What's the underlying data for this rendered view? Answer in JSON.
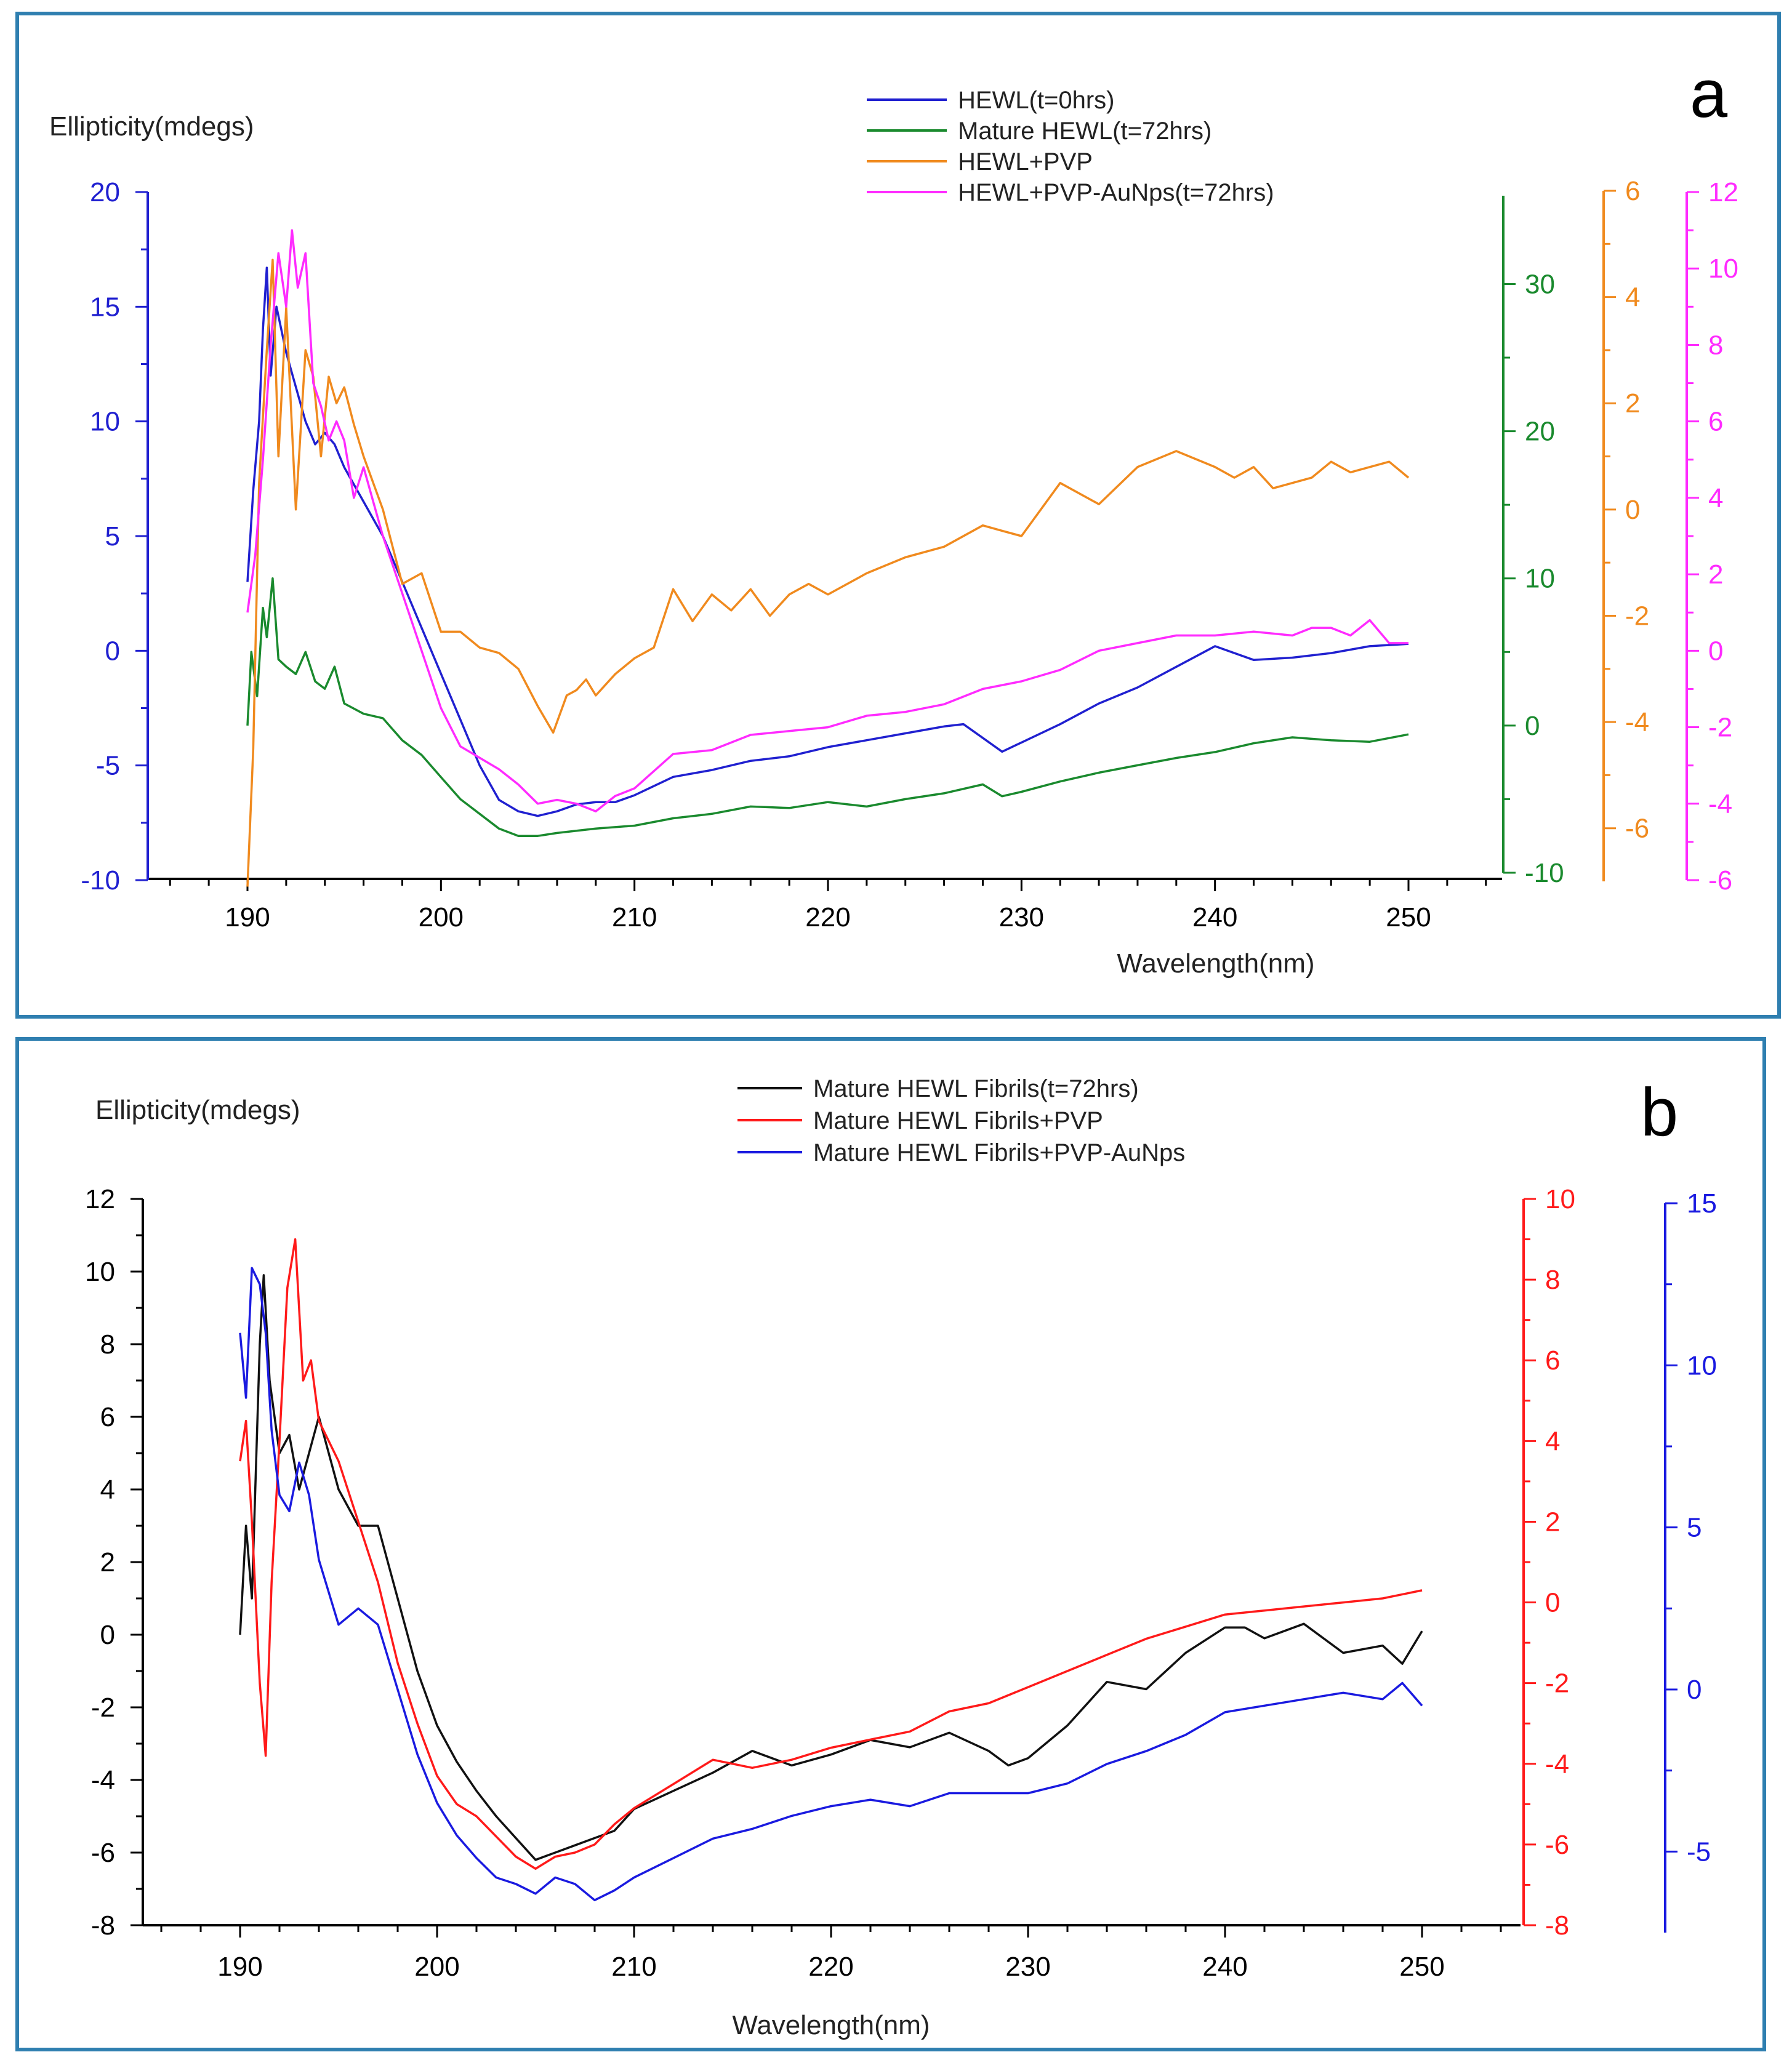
{
  "colors": {
    "frame": "#2f7fb0",
    "axis_black": "#000000",
    "a_blue": "#2020d0",
    "a_green": "#1a8a2e",
    "a_orange": "#f08a1e",
    "a_magenta": "#ff2bff",
    "b_black": "#111111",
    "b_red": "#ff1a1a",
    "b_blue": "#1a1ae0"
  },
  "chart_data": [
    {
      "panel": "a",
      "type": "line",
      "panel_label": "a",
      "ylabel": "Ellipticity(mdegs)",
      "xlabel": "Wavelength(nm)",
      "xlim": [
        185,
        255
      ],
      "x_ticks": [
        190,
        200,
        210,
        220,
        230,
        240,
        250
      ],
      "x_tick_labels": [
        "190",
        "200",
        "210",
        "220",
        "230",
        "240",
        "250"
      ],
      "axes": [
        {
          "id": "left",
          "color": "#2020d0",
          "ylim": [
            -10,
            20
          ],
          "ticks": [
            -10,
            -5,
            0,
            5,
            10,
            15,
            20
          ],
          "tick_labels": [
            "-10",
            "-5",
            "0",
            "5",
            "10",
            "15",
            "20"
          ]
        },
        {
          "id": "green",
          "color": "#1a8a2e",
          "ylim": [
            -10,
            36
          ],
          "ticks": [
            -10,
            0,
            10,
            20,
            30
          ],
          "tick_labels": [
            "-10",
            "0",
            "10",
            "20",
            "30"
          ]
        },
        {
          "id": "orange",
          "color": "#f08a1e",
          "ylim": [
            -7,
            6
          ],
          "ticks": [
            -6,
            -4,
            -2,
            0,
            2,
            4,
            6
          ],
          "tick_labels": [
            "-6",
            "-4",
            "-2",
            "0",
            "2",
            "4",
            "6"
          ]
        },
        {
          "id": "magenta",
          "color": "#ff2bff",
          "ylim": [
            -6,
            12
          ],
          "ticks": [
            -6,
            -4,
            -2,
            0,
            2,
            4,
            6,
            8,
            10,
            12
          ],
          "tick_labels": [
            "-6",
            "-4",
            "-2",
            "0",
            "2",
            "4",
            "6",
            "8",
            "10",
            "12"
          ]
        }
      ],
      "legend": [
        "HEWL(t=0hrs)",
        "Mature HEWL(t=72hrs)",
        "HEWL+PVP",
        "HEWL+PVP-AuNps(t=72hrs)"
      ],
      "legend_position": "top-center",
      "series": [
        {
          "name": "HEWL(t=0hrs)",
          "axis": "left",
          "color": "#2020d0",
          "x": [
            190,
            190.3,
            190.6,
            190.8,
            191,
            191.2,
            191.5,
            192,
            192.5,
            193,
            193.5,
            194,
            194.5,
            195,
            196,
            197,
            198,
            199,
            200,
            201,
            202,
            203,
            204,
            205,
            206,
            207,
            208,
            209,
            210,
            212,
            214,
            216,
            218,
            220,
            222,
            224,
            226,
            227,
            228,
            229,
            230,
            232,
            234,
            236,
            238,
            240,
            242,
            244,
            246,
            248,
            250
          ],
          "y": [
            3,
            7,
            10,
            14,
            16.7,
            12,
            15,
            13,
            11.5,
            10,
            9,
            9.5,
            9,
            8,
            6.5,
            5,
            3,
            1,
            -1,
            -3,
            -5,
            -6.5,
            -7,
            -7.2,
            -7,
            -6.7,
            -6.6,
            -6.6,
            -6.3,
            -5.5,
            -5.2,
            -4.8,
            -4.6,
            -4.2,
            -3.9,
            -3.6,
            -3.3,
            -3.2,
            -3.8,
            -4.4,
            -4,
            -3.2,
            -2.3,
            -1.6,
            -0.7,
            0.2,
            -0.4,
            -0.3,
            -0.1,
            0.2,
            0.3
          ]
        },
        {
          "name": "Mature HEWL(t=72hrs)",
          "axis": "green",
          "color": "#1a8a2e",
          "x": [
            190,
            190.2,
            190.5,
            190.8,
            191,
            191.3,
            191.6,
            192,
            192.5,
            193,
            193.5,
            194,
            194.5,
            195,
            196,
            197,
            198,
            199,
            200,
            201,
            202,
            203,
            204,
            205,
            206,
            208,
            210,
            212,
            214,
            216,
            218,
            220,
            222,
            224,
            226,
            228,
            229,
            230,
            232,
            234,
            236,
            238,
            240,
            242,
            244,
            246,
            248,
            250
          ],
          "y": [
            0,
            5,
            2,
            8,
            6,
            10,
            4.5,
            4,
            3.5,
            5,
            3,
            2.5,
            4,
            1.5,
            0.8,
            0.5,
            -1,
            -2,
            -3.5,
            -5,
            -6,
            -7,
            -7.5,
            -7.5,
            -7.3,
            -7,
            -6.8,
            -6.3,
            -6,
            -5.5,
            -5.6,
            -5.2,
            -5.5,
            -5,
            -4.6,
            -4,
            -4.8,
            -4.5,
            -3.8,
            -3.2,
            -2.7,
            -2.2,
            -1.8,
            -1.2,
            -0.8,
            -1,
            -1.1,
            -0.6
          ]
        },
        {
          "name": "HEWL+PVP",
          "axis": "orange",
          "color": "#f08a1e",
          "x": [
            190,
            190.3,
            190.6,
            191,
            191.3,
            191.6,
            192,
            192.5,
            193,
            193.4,
            193.8,
            194.2,
            194.6,
            195,
            195.5,
            196,
            197,
            198,
            199,
            200,
            201,
            202,
            203,
            204,
            205,
            205.8,
            206.5,
            207,
            207.5,
            208,
            209,
            210,
            211,
            212,
            213,
            214,
            215,
            216,
            217,
            218,
            219,
            220,
            222,
            224,
            226,
            228,
            229,
            230,
            232,
            234,
            236,
            238,
            240,
            241,
            242,
            243,
            244,
            245,
            246,
            247,
            248,
            249,
            250
          ],
          "y": [
            -7.1,
            -4.5,
            0.5,
            3,
            4.7,
            1,
            3.8,
            0,
            3,
            2.5,
            1,
            2.5,
            2,
            2.3,
            1.6,
            1,
            0,
            -1.4,
            -1.2,
            -2.3,
            -2.3,
            -2.6,
            -2.7,
            -3,
            -3.7,
            -4.2,
            -3.5,
            -3.4,
            -3.2,
            -3.5,
            -3.1,
            -2.8,
            -2.6,
            -1.5,
            -2.1,
            -1.6,
            -1.9,
            -1.5,
            -2,
            -1.6,
            -1.4,
            -1.6,
            -1.2,
            -0.9,
            -0.7,
            -0.3,
            -0.4,
            -0.5,
            0.5,
            0.1,
            0.8,
            1.1,
            0.8,
            0.6,
            0.8,
            0.4,
            0.5,
            0.6,
            0.9,
            0.7,
            0.8,
            0.9,
            0.6
          ]
        },
        {
          "name": "HEWL+PVP-AuNps(t=72hrs)",
          "axis": "magenta",
          "color": "#ff2bff",
          "x": [
            190,
            190.4,
            190.8,
            191.2,
            191.6,
            192,
            192.3,
            192.6,
            193,
            193.4,
            193.8,
            194.2,
            194.6,
            195,
            195.5,
            196,
            197,
            198,
            199,
            200,
            201,
            202,
            203,
            204,
            205,
            206,
            207,
            208,
            209,
            210,
            212,
            214,
            216,
            218,
            220,
            222,
            224,
            226,
            228,
            230,
            232,
            234,
            236,
            238,
            240,
            242,
            244,
            245,
            246,
            247,
            248,
            249,
            250
          ],
          "y": [
            1,
            2.5,
            5,
            8,
            10.4,
            9,
            11,
            9.5,
            10.4,
            7,
            6.4,
            5.5,
            6,
            5.5,
            4,
            4.8,
            3,
            1.5,
            0,
            -1.5,
            -2.5,
            -2.8,
            -3.1,
            -3.5,
            -4,
            -3.9,
            -4,
            -4.2,
            -3.8,
            -3.6,
            -2.7,
            -2.6,
            -2.2,
            -2.1,
            -2,
            -1.7,
            -1.6,
            -1.4,
            -1,
            -0.8,
            -0.5,
            0,
            0.2,
            0.4,
            0.4,
            0.5,
            0.4,
            0.6,
            0.6,
            0.4,
            0.8,
            0.2,
            0.2
          ]
        }
      ]
    },
    {
      "panel": "b",
      "type": "line",
      "panel_label": "b",
      "ylabel": "Ellipticity(mdegs)",
      "xlabel": "Wavelength(nm)",
      "xlim": [
        185,
        255
      ],
      "x_ticks": [
        190,
        200,
        210,
        220,
        230,
        240,
        250
      ],
      "x_tick_labels": [
        "190",
        "200",
        "210",
        "220",
        "230",
        "240",
        "250"
      ],
      "axes": [
        {
          "id": "left",
          "color": "#000000",
          "ylim": [
            -8,
            12
          ],
          "ticks": [
            -8,
            -6,
            -4,
            -2,
            0,
            2,
            4,
            6,
            8,
            10,
            12
          ],
          "tick_labels": [
            "-8",
            "-6",
            "-4",
            "-2",
            "0",
            "2",
            "4",
            "6",
            "8",
            "10",
            "12"
          ]
        },
        {
          "id": "red",
          "color": "#ff1a1a",
          "ylim": [
            -8,
            10
          ],
          "ticks": [
            -8,
            -6,
            -4,
            -2,
            0,
            2,
            4,
            6,
            8,
            10
          ],
          "tick_labels": [
            "-8",
            "-6",
            "-4",
            "-2",
            "0",
            "2",
            "4",
            "6",
            "8",
            "10"
          ]
        },
        {
          "id": "blue",
          "color": "#1a1ae0",
          "ylim": [
            -7.5,
            15
          ],
          "ticks": [
            -5,
            0,
            5,
            10,
            15
          ],
          "tick_labels": [
            "-5",
            "0",
            "5",
            "10",
            "15"
          ]
        }
      ],
      "legend": [
        "Mature HEWL Fibrils(t=72hrs)",
        "Mature HEWL Fibrils+PVP",
        "Mature HEWL Fibrils+PVP-AuNps"
      ],
      "legend_position": "top-center",
      "series": [
        {
          "name": "Mature HEWL Fibrils(t=72hrs)",
          "axis": "left",
          "color": "#111111",
          "x": [
            190,
            190.3,
            190.6,
            191,
            191.2,
            191.5,
            192,
            192.5,
            193,
            193.5,
            194,
            194.5,
            195,
            196,
            197,
            198,
            199,
            200,
            201,
            202,
            203,
            204,
            205,
            206,
            207,
            208,
            209,
            210,
            212,
            214,
            216,
            218,
            220,
            222,
            224,
            226,
            228,
            229,
            230,
            232,
            234,
            236,
            238,
            240,
            241,
            242,
            244,
            246,
            248,
            249,
            250
          ],
          "y": [
            0,
            3,
            1,
            8,
            9.9,
            7,
            5,
            5.5,
            4,
            5,
            6,
            5,
            4,
            3,
            3,
            1,
            -1,
            -2.5,
            -3.5,
            -4.3,
            -5,
            -5.6,
            -6.2,
            -6,
            -5.8,
            -5.6,
            -5.4,
            -4.8,
            -4.3,
            -3.8,
            -3.2,
            -3.6,
            -3.3,
            -2.9,
            -3.1,
            -2.7,
            -3.2,
            -3.6,
            -3.4,
            -2.5,
            -1.3,
            -1.5,
            -0.5,
            0.2,
            0.2,
            -0.1,
            0.3,
            -0.5,
            -0.3,
            -0.8,
            0.1
          ]
        },
        {
          "name": "Mature HEWL Fibrils+PVP",
          "axis": "red",
          "color": "#ff1a1a",
          "x": [
            190,
            190.3,
            190.6,
            191,
            191.3,
            191.6,
            192,
            192.4,
            192.8,
            193.2,
            193.6,
            194,
            194.5,
            195,
            196,
            197,
            198,
            199,
            200,
            201,
            202,
            203,
            204,
            205,
            206,
            207,
            208,
            209,
            210,
            212,
            214,
            216,
            218,
            220,
            222,
            224,
            226,
            228,
            230,
            232,
            234,
            236,
            238,
            240,
            242,
            244,
            246,
            248,
            250
          ],
          "y": [
            3.5,
            4.5,
            2,
            -2,
            -3.8,
            0.5,
            4,
            7.8,
            9,
            5.5,
            6,
            4.5,
            4,
            3.5,
            2,
            0.5,
            -1.5,
            -3,
            -4.3,
            -5,
            -5.3,
            -5.8,
            -6.3,
            -6.6,
            -6.3,
            -6.2,
            -6,
            -5.5,
            -5.1,
            -4.5,
            -3.9,
            -4.1,
            -3.9,
            -3.6,
            -3.4,
            -3.2,
            -2.7,
            -2.5,
            -2.1,
            -1.7,
            -1.3,
            -0.9,
            -0.6,
            -0.3,
            -0.2,
            -0.1,
            0,
            0.1,
            0.3
          ]
        },
        {
          "name": "Mature HEWL Fibrils+PVP-AuNps",
          "axis": "blue",
          "color": "#1a1ae0",
          "x": [
            190,
            190.3,
            190.6,
            191,
            191.3,
            191.6,
            192,
            192.5,
            193,
            193.5,
            194,
            194.5,
            195,
            196,
            197,
            198,
            199,
            200,
            201,
            202,
            203,
            204,
            205,
            206,
            207,
            208,
            209,
            210,
            212,
            214,
            216,
            218,
            220,
            222,
            224,
            226,
            228,
            230,
            232,
            234,
            236,
            238,
            240,
            242,
            244,
            246,
            248,
            249,
            250
          ],
          "y": [
            11,
            9,
            13,
            12.5,
            11,
            8,
            6,
            5.5,
            7,
            6,
            4,
            3,
            2,
            2.5,
            2,
            0,
            -2,
            -3.5,
            -4.5,
            -5.2,
            -5.8,
            -6,
            -6.3,
            -5.8,
            -6,
            -6.5,
            -6.2,
            -5.8,
            -5.2,
            -4.6,
            -4.3,
            -3.9,
            -3.6,
            -3.4,
            -3.6,
            -3.2,
            -3.2,
            -3.2,
            -2.9,
            -2.3,
            -1.9,
            -1.4,
            -0.7,
            -0.5,
            -0.3,
            -0.1,
            -0.3,
            0.2,
            -0.5
          ]
        }
      ]
    }
  ]
}
